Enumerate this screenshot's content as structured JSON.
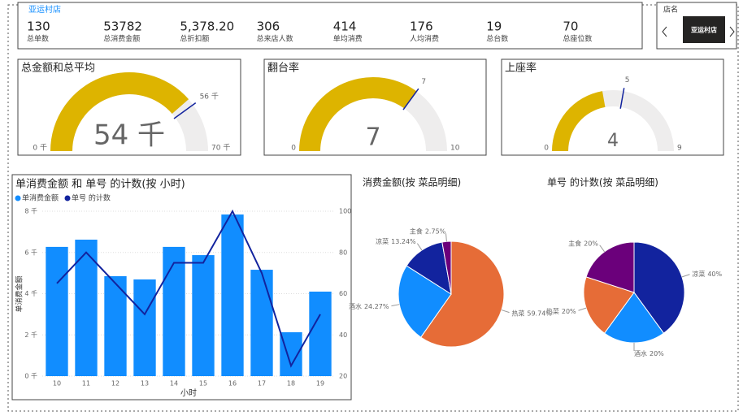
{
  "kpi_card": {
    "title": "亚运村店",
    "items": [
      {
        "value": "130",
        "label": "总单数"
      },
      {
        "value": "53782",
        "label": "总消费金额"
      },
      {
        "value": "5,378.20",
        "label": "总折扣额"
      },
      {
        "value": "306",
        "label": "总来店人数"
      },
      {
        "value": "414",
        "label": "单均消费"
      },
      {
        "value": "176",
        "label": "人均消费"
      },
      {
        "value": "19",
        "label": "总台数"
      },
      {
        "value": "70",
        "label": "总座位数"
      }
    ]
  },
  "slicer": {
    "title": "店名",
    "selected": "亚运村店"
  },
  "chart_data": [
    {
      "type": "gauge",
      "title": "总金额和总平均",
      "color": "#ddb400",
      "value": {
        "value": 54,
        "label": "54 千"
      },
      "min": {
        "value": 0,
        "label": "0 千"
      },
      "max": {
        "value": 70,
        "label": "70 千"
      },
      "target": {
        "value": 56,
        "label": "56 千"
      }
    },
    {
      "type": "gauge",
      "title": "翻台率",
      "color": "#ddb400",
      "value": 7,
      "min": 0,
      "max": 10,
      "target": 7
    },
    {
      "type": "gauge",
      "title": "上座率",
      "color": "#ddb400",
      "value": 4,
      "min": 0,
      "max": 9,
      "target": 5
    },
    {
      "type": "combo",
      "title": "单消费金额 和 单号 的计数(按 小时)",
      "xlabel": "小时",
      "ylabel": "单消费金额",
      "categories": [
        "10",
        "11",
        "12",
        "13",
        "14",
        "15",
        "16",
        "17",
        "18",
        "19"
      ],
      "series": [
        {
          "name": "单消费金额",
          "color": "#118dff",
          "type": "bar",
          "values": [
            6.27,
            6.62,
            4.85,
            4.69,
            6.27,
            5.87,
            7.84,
            5.16,
            2.13,
            4.1
          ]
        },
        {
          "name": "单号 的计数",
          "color": "#12239e",
          "type": "line",
          "axis": "y2",
          "values": [
            65,
            80,
            65,
            50,
            75,
            75,
            100,
            70,
            25,
            50
          ]
        }
      ],
      "ylim": [
        0,
        8
      ],
      "yticks": [
        {
          "value": 0,
          "label": "0 千"
        },
        {
          "value": 2,
          "label": "2 千"
        },
        {
          "value": 4,
          "label": "4 千"
        },
        {
          "value": 6,
          "label": "6 千"
        },
        {
          "value": 8,
          "label": "8 千"
        }
      ],
      "y2lim": [
        20,
        100
      ],
      "y2ticks": [
        20,
        40,
        60,
        80,
        100
      ],
      "grid": true
    },
    {
      "type": "pie",
      "title": "消费金额(按 菜品明细)",
      "categories": [
        "热菜",
        "酒水",
        "凉菜",
        "主食"
      ],
      "values": [
        59.74,
        24.27,
        13.24,
        2.75
      ],
      "value_labels": [
        "59.74%",
        "24.27%",
        "13.24%",
        "2.75%"
      ],
      "colors": [
        "#e66c37",
        "#118dff",
        "#12239e",
        "#6b007b"
      ]
    },
    {
      "type": "pie",
      "title": "单号 的计数(按 菜品明细)",
      "categories": [
        "凉菜",
        "酒水",
        "热菜",
        "主食"
      ],
      "values": [
        40,
        20,
        20,
        20
      ],
      "value_labels": [
        "40%",
        "20%",
        "20%",
        "20%"
      ],
      "colors": [
        "#12239e",
        "#118dff",
        "#e66c37",
        "#6b007b"
      ]
    }
  ]
}
